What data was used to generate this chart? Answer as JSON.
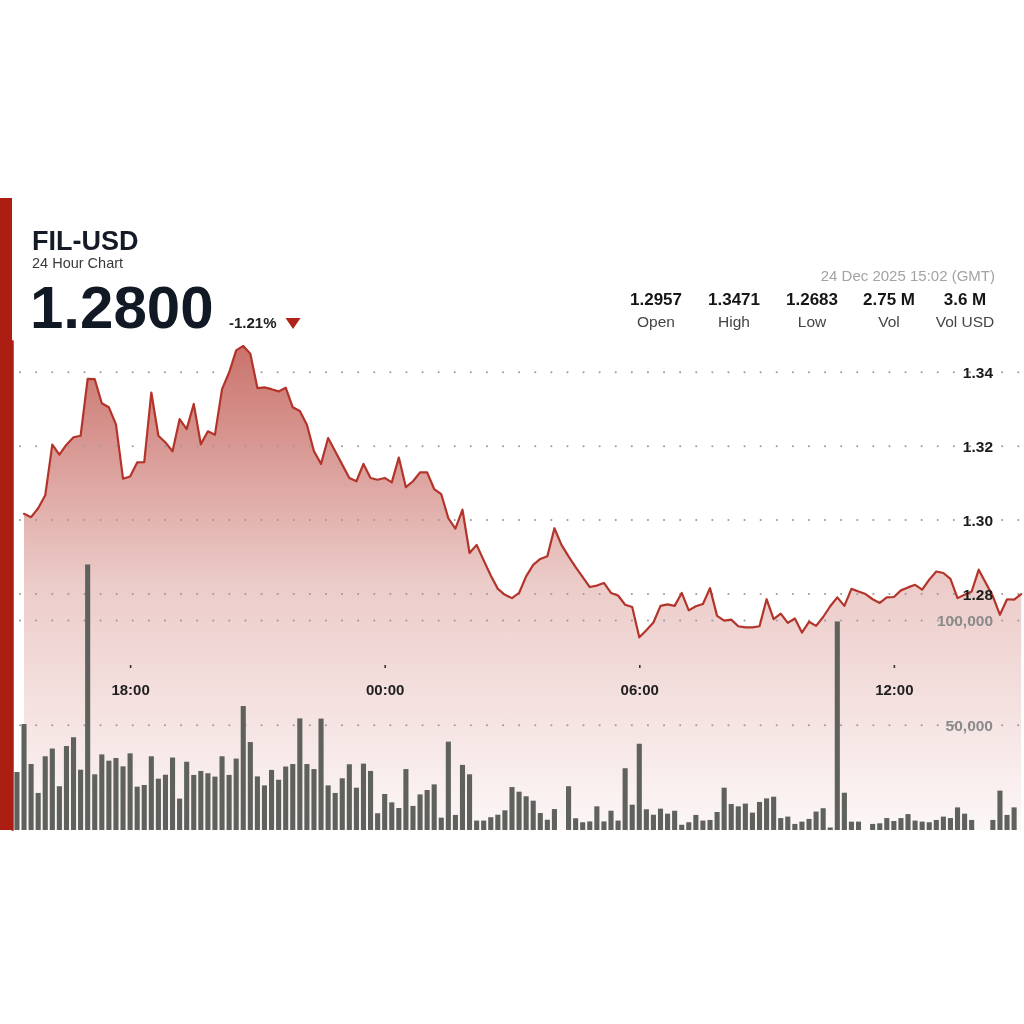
{
  "chart_data": {
    "type": "area",
    "title": "FIL-USD",
    "subtitle": "24 Hour Chart",
    "annotations": [
      "1.2800",
      "-1.21%",
      "24 Dec 2025 15:02 (GMT)",
      "1.2957",
      "Open",
      "1.3471",
      "High",
      "1.2683",
      "Low",
      "2.75 M",
      "Vol",
      "3.6 M",
      "Vol USD"
    ],
    "xlim": [
      "2025-12-23T15:13",
      "2025-12-24T15:04"
    ],
    "xticks": [
      {
        "value": "2025-12-23T18:00",
        "label": "18:00"
      },
      {
        "value": "2025-12-24T00:00",
        "label": "00:00"
      },
      {
        "value": "2025-12-24T06:00",
        "label": "06:00"
      },
      {
        "value": "2025-12-24T12:00",
        "label": "12:00"
      }
    ],
    "ylim": [
      1.2162,
      1.3487
    ],
    "yticks": [
      1.28,
      {
        "value": 1.3,
        "label": "1.30"
      },
      1.32,
      1.34
    ],
    "y2lim": [
      0,
      234000
    ],
    "y2ticks": [
      {
        "value": 50000,
        "label": "50,000"
      },
      {
        "value": 100000,
        "label": "100,000"
      }
    ],
    "grid": "y",
    "series": [
      {
        "color": "#b3342a",
        "x": [
          "2025-12-23T15:30",
          "2025-12-23T15:40",
          "2025-12-23T15:50",
          "2025-12-23T16:00",
          "2025-12-23T16:10",
          "2025-12-23T16:20",
          "2025-12-23T16:30",
          "2025-12-23T16:40",
          "2025-12-23T16:50",
          "2025-12-23T17:00",
          "2025-12-23T17:10",
          "2025-12-23T17:20",
          "2025-12-23T17:30",
          "2025-12-23T17:40",
          "2025-12-23T17:50",
          "2025-12-23T18:00",
          "2025-12-23T18:10",
          "2025-12-23T18:20",
          "2025-12-23T18:30",
          "2025-12-23T18:40",
          "2025-12-23T18:50",
          "2025-12-23T19:00",
          "2025-12-23T19:10",
          "2025-12-23T19:20",
          "2025-12-23T19:30",
          "2025-12-23T19:40",
          "2025-12-23T19:50",
          "2025-12-23T20:00",
          "2025-12-23T20:10",
          "2025-12-23T20:20",
          "2025-12-23T20:30",
          "2025-12-23T20:40",
          "2025-12-23T20:50",
          "2025-12-23T21:00",
          "2025-12-23T21:10",
          "2025-12-23T21:20",
          "2025-12-23T21:30",
          "2025-12-23T21:40",
          "2025-12-23T21:50",
          "2025-12-23T22:00",
          "2025-12-23T22:10",
          "2025-12-23T22:20",
          "2025-12-23T22:30",
          "2025-12-23T22:40",
          "2025-12-23T22:50",
          "2025-12-23T23:00",
          "2025-12-23T23:10",
          "2025-12-23T23:20",
          "2025-12-23T23:30",
          "2025-12-23T23:40",
          "2025-12-23T23:50",
          "2025-12-24T00:00",
          "2025-12-24T00:10",
          "2025-12-24T00:20",
          "2025-12-24T00:30",
          "2025-12-24T00:40",
          "2025-12-24T00:50",
          "2025-12-24T01:00",
          "2025-12-24T01:10",
          "2025-12-24T01:20",
          "2025-12-24T01:30",
          "2025-12-24T01:40",
          "2025-12-24T01:50",
          "2025-12-24T02:00",
          "2025-12-24T02:10",
          "2025-12-24T02:20",
          "2025-12-24T02:30",
          "2025-12-24T02:40",
          "2025-12-24T02:50",
          "2025-12-24T03:00",
          "2025-12-24T03:10",
          "2025-12-24T03:20",
          "2025-12-24T03:30",
          "2025-12-24T03:40",
          "2025-12-24T03:50",
          "2025-12-24T04:00",
          "2025-12-24T04:10",
          "2025-12-24T04:20",
          "2025-12-24T04:30",
          "2025-12-24T04:40",
          "2025-12-24T04:50",
          "2025-12-24T05:00",
          "2025-12-24T05:10",
          "2025-12-24T05:20",
          "2025-12-24T05:30",
          "2025-12-24T05:40",
          "2025-12-24T05:50",
          "2025-12-24T06:00",
          "2025-12-24T06:10",
          "2025-12-24T06:20",
          "2025-12-24T06:30",
          "2025-12-24T06:40",
          "2025-12-24T06:50",
          "2025-12-24T07:00",
          "2025-12-24T07:10",
          "2025-12-24T07:20",
          "2025-12-24T07:30",
          "2025-12-24T07:40",
          "2025-12-24T07:50",
          "2025-12-24T08:00",
          "2025-12-24T08:10",
          "2025-12-24T08:20",
          "2025-12-24T08:30",
          "2025-12-24T08:40",
          "2025-12-24T08:50",
          "2025-12-24T09:00",
          "2025-12-24T09:10",
          "2025-12-24T09:20",
          "2025-12-24T09:30",
          "2025-12-24T09:40",
          "2025-12-24T09:50",
          "2025-12-24T10:00",
          "2025-12-24T10:10",
          "2025-12-24T10:20",
          "2025-12-24T10:30",
          "2025-12-24T10:40",
          "2025-12-24T10:50",
          "2025-12-24T11:00",
          "2025-12-24T11:10",
          "2025-12-24T11:20",
          "2025-12-24T11:30",
          "2025-12-24T11:40",
          "2025-12-24T11:50",
          "2025-12-24T12:00",
          "2025-12-24T12:10",
          "2025-12-24T12:20",
          "2025-12-24T12:30",
          "2025-12-24T12:40",
          "2025-12-24T12:50",
          "2025-12-24T13:00",
          "2025-12-24T13:10",
          "2025-12-24T13:20",
          "2025-12-24T13:30",
          "2025-12-24T13:40",
          "2025-12-24T13:50",
          "2025-12-24T14:00",
          "2025-12-24T14:10",
          "2025-12-24T14:20",
          "2025-12-24T14:30",
          "2025-12-24T14:40",
          "2025-12-24T14:50",
          "2025-12-24T15:00"
        ],
        "values": [
          1.3017,
          1.3008,
          1.3032,
          1.3067,
          1.3204,
          1.3177,
          1.3204,
          1.3224,
          1.3228,
          1.3382,
          1.3381,
          1.3316,
          1.3305,
          1.3259,
          1.3112,
          1.3118,
          1.3156,
          1.3157,
          1.3345,
          1.3228,
          1.321,
          1.3186,
          1.3273,
          1.3246,
          1.3314,
          1.3205,
          1.324,
          1.3231,
          1.3354,
          1.3399,
          1.3459,
          1.3471,
          1.345,
          1.3357,
          1.3359,
          1.3354,
          1.3348,
          1.3358,
          1.3305,
          1.3295,
          1.3258,
          1.3186,
          1.3152,
          1.3222,
          1.3186,
          1.315,
          1.3114,
          1.3105,
          1.3152,
          1.3114,
          1.3109,
          1.3114,
          1.3102,
          1.3169,
          1.3089,
          1.3105,
          1.3129,
          1.3129,
          1.3084,
          1.307,
          1.3005,
          1.2977,
          1.3028,
          1.2911,
          1.2933,
          1.2891,
          1.285,
          1.2814,
          1.2798,
          1.2789,
          1.2803,
          1.2848,
          1.2879,
          1.2895,
          1.2902,
          1.2978,
          1.2933,
          1.2902,
          1.2873,
          1.2846,
          1.2819,
          1.2823,
          1.283,
          1.2803,
          1.2796,
          1.2771,
          1.2765,
          1.2683,
          1.2702,
          1.2723,
          1.2768,
          1.2772,
          1.2768,
          1.2803,
          1.2756,
          1.2767,
          1.2773,
          1.2816,
          1.2741,
          1.2728,
          1.2731,
          1.2713,
          1.271,
          1.271,
          1.2713,
          1.2786,
          1.2732,
          1.2747,
          1.2722,
          1.2734,
          1.2696,
          1.2725,
          1.2714,
          1.2738,
          1.2767,
          1.2791,
          1.2768,
          1.2814,
          1.2807,
          1.28,
          1.2786,
          1.2776,
          1.2791,
          1.2792,
          1.281,
          1.2818,
          1.2825,
          1.2812,
          1.2839,
          1.2861,
          1.2857,
          1.2841,
          1.2789,
          1.2798,
          1.2807,
          1.2866,
          1.283,
          1.2794,
          1.2744,
          1.2786,
          1.2785,
          1.28
        ]
      },
      {
        "type": "bar",
        "axis": "y2",
        "color": "#5e615c",
        "x": [
          "2025-12-23T15:20",
          "2025-12-23T15:30",
          "2025-12-23T15:40",
          "2025-12-23T15:50",
          "2025-12-23T16:00",
          "2025-12-23T16:10",
          "2025-12-23T16:20",
          "2025-12-23T16:30",
          "2025-12-23T16:40",
          "2025-12-23T16:50",
          "2025-12-23T17:00",
          "2025-12-23T17:10",
          "2025-12-23T17:20",
          "2025-12-23T17:30",
          "2025-12-23T17:40",
          "2025-12-23T17:50",
          "2025-12-23T18:00",
          "2025-12-23T18:10",
          "2025-12-23T18:20",
          "2025-12-23T18:30",
          "2025-12-23T18:40",
          "2025-12-23T18:50",
          "2025-12-23T19:00",
          "2025-12-23T19:10",
          "2025-12-23T19:20",
          "2025-12-23T19:30",
          "2025-12-23T19:40",
          "2025-12-23T19:50",
          "2025-12-23T20:00",
          "2025-12-23T20:10",
          "2025-12-23T20:20",
          "2025-12-23T20:30",
          "2025-12-23T20:40",
          "2025-12-23T20:50",
          "2025-12-23T21:00",
          "2025-12-23T21:10",
          "2025-12-23T21:20",
          "2025-12-23T21:30",
          "2025-12-23T21:40",
          "2025-12-23T21:50",
          "2025-12-23T22:00",
          "2025-12-23T22:10",
          "2025-12-23T22:20",
          "2025-12-23T22:30",
          "2025-12-23T22:40",
          "2025-12-23T22:50",
          "2025-12-23T23:00",
          "2025-12-23T23:10",
          "2025-12-23T23:20",
          "2025-12-23T23:30",
          "2025-12-23T23:40",
          "2025-12-23T23:50",
          "2025-12-24T00:00",
          "2025-12-24T00:10",
          "2025-12-24T00:20",
          "2025-12-24T00:30",
          "2025-12-24T00:40",
          "2025-12-24T00:50",
          "2025-12-24T01:00",
          "2025-12-24T01:10",
          "2025-12-24T01:20",
          "2025-12-24T01:30",
          "2025-12-24T01:40",
          "2025-12-24T01:50",
          "2025-12-24T02:00",
          "2025-12-24T02:10",
          "2025-12-24T02:20",
          "2025-12-24T02:30",
          "2025-12-24T02:40",
          "2025-12-24T02:50",
          "2025-12-24T03:00",
          "2025-12-24T03:10",
          "2025-12-24T03:20",
          "2025-12-24T03:30",
          "2025-12-24T03:40",
          "2025-12-24T03:50",
          "2025-12-24T04:00",
          "2025-12-24T04:10",
          "2025-12-24T04:20",
          "2025-12-24T04:30",
          "2025-12-24T04:40",
          "2025-12-24T04:50",
          "2025-12-24T05:00",
          "2025-12-24T05:10",
          "2025-12-24T05:20",
          "2025-12-24T05:30",
          "2025-12-24T05:40",
          "2025-12-24T05:50",
          "2025-12-24T06:00",
          "2025-12-24T06:10",
          "2025-12-24T06:20",
          "2025-12-24T06:30",
          "2025-12-24T06:40",
          "2025-12-24T06:50",
          "2025-12-24T07:00",
          "2025-12-24T07:10",
          "2025-12-24T07:20",
          "2025-12-24T07:30",
          "2025-12-24T07:40",
          "2025-12-24T07:50",
          "2025-12-24T08:00",
          "2025-12-24T08:10",
          "2025-12-24T08:20",
          "2025-12-24T08:30",
          "2025-12-24T08:40",
          "2025-12-24T08:50",
          "2025-12-24T09:00",
          "2025-12-24T09:10",
          "2025-12-24T09:20",
          "2025-12-24T09:30",
          "2025-12-24T09:40",
          "2025-12-24T09:50",
          "2025-12-24T10:00",
          "2025-12-24T10:10",
          "2025-12-24T10:20",
          "2025-12-24T10:30",
          "2025-12-24T10:40",
          "2025-12-24T10:50",
          "2025-12-24T11:00",
          "2025-12-24T11:10",
          "2025-12-24T11:20",
          "2025-12-24T11:30",
          "2025-12-24T11:40",
          "2025-12-24T11:50",
          "2025-12-24T12:00",
          "2025-12-24T12:10",
          "2025-12-24T12:20",
          "2025-12-24T12:30",
          "2025-12-24T12:40",
          "2025-12-24T12:50",
          "2025-12-24T13:00",
          "2025-12-24T13:10",
          "2025-12-24T13:20",
          "2025-12-24T13:30",
          "2025-12-24T13:40",
          "2025-12-24T13:50",
          "2025-12-24T14:00",
          "2025-12-24T14:10",
          "2025-12-24T14:20",
          "2025-12-24T14:30",
          "2025-12-24T14:40",
          "2025-12-24T14:50"
        ],
        "values": [
          27700,
          50600,
          31500,
          17700,
          35200,
          38900,
          20900,
          40100,
          44300,
          28800,
          126800,
          26600,
          36100,
          33100,
          34400,
          30400,
          36600,
          20700,
          21500,
          35200,
          24500,
          26400,
          34600,
          15000,
          32600,
          26300,
          28200,
          27100,
          25500,
          35200,
          26300,
          34100,
          59200,
          42000,
          25600,
          21300,
          28700,
          24000,
          30300,
          31500,
          53300,
          31500,
          29100,
          53200,
          21300,
          17700,
          24700,
          31400,
          20200,
          31700,
          28200,
          8000,
          17200,
          13200,
          10500,
          29100,
          11500,
          17000,
          19100,
          21800,
          5900,
          42200,
          7200,
          31100,
          26600,
          4500,
          4500,
          6100,
          7300,
          9400,
          20500,
          18300,
          16100,
          14000,
          8100,
          4900,
          10000,
          null,
          20900,
          5600,
          3700,
          4100,
          11300,
          4100,
          9200,
          4500,
          29500,
          12100,
          41200,
          9900,
          7300,
          10200,
          7800,
          9200,
          2500,
          3700,
          7200,
          4500,
          4800,
          8600,
          20200,
          12400,
          11300,
          12600,
          8300,
          13400,
          15100,
          15900,
          5700,
          6400,
          2900,
          4000,
          5300,
          8800,
          10400,
          1200,
          99600,
          17800,
          4000,
          4000,
          null,
          2900,
          3200,
          5700,
          4300,
          5700,
          7600,
          4500,
          4000,
          3700,
          4800,
          6400,
          5700,
          10800,
          7800,
          4800,
          null,
          null,
          4800,
          18800,
          7200,
          10800
        ]
      }
    ]
  }
}
